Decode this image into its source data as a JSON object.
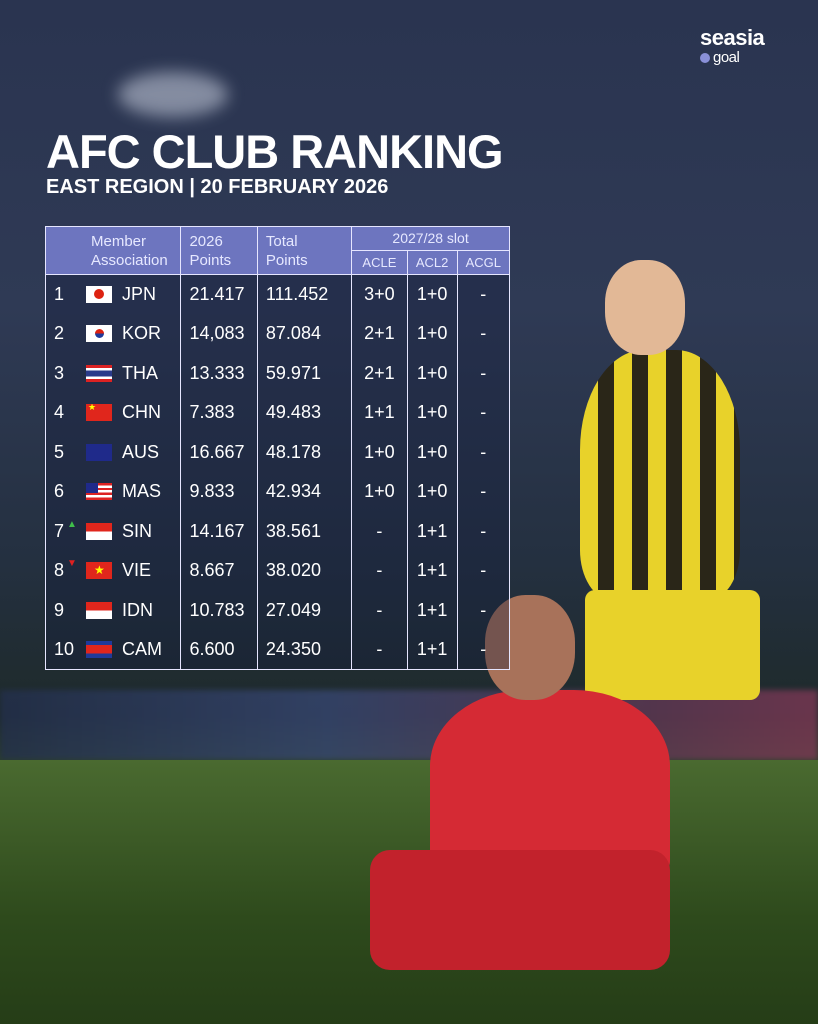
{
  "logo": {
    "brand": "seasia",
    "sub": "goal"
  },
  "title": "AFC CLUB RANKING",
  "subtitle": "EAST REGION | 20 FEBRUARY 2026",
  "table": {
    "headers": {
      "member": "Member Association",
      "points_2026": "2026 Points",
      "total": "Total Points",
      "slot": "2027/28 slot",
      "acle": "ACLE",
      "acl2": "ACL2",
      "acgl": "ACGL"
    },
    "rows": [
      {
        "rank": "1",
        "code": "JPN",
        "p2026": "21.417",
        "total": "111.452",
        "acle": "3+0",
        "acl2": "1+0",
        "acgl": "-",
        "move": ""
      },
      {
        "rank": "2",
        "code": "KOR",
        "p2026": "14,083",
        "total": "87.084",
        "acle": "2+1",
        "acl2": "1+0",
        "acgl": "-",
        "move": ""
      },
      {
        "rank": "3",
        "code": "THA",
        "p2026": "13.333",
        "total": "59.971",
        "acle": "2+1",
        "acl2": "1+0",
        "acgl": "-",
        "move": ""
      },
      {
        "rank": "4",
        "code": "CHN",
        "p2026": "7.383",
        "total": "49.483",
        "acle": "1+1",
        "acl2": "1+0",
        "acgl": "-",
        "move": ""
      },
      {
        "rank": "5",
        "code": "AUS",
        "p2026": "16.667",
        "total": "48.178",
        "acle": "1+0",
        "acl2": "1+0",
        "acgl": "-",
        "move": ""
      },
      {
        "rank": "6",
        "code": "MAS",
        "p2026": "9.833",
        "total": "42.934",
        "acle": "1+0",
        "acl2": "1+0",
        "acgl": "-",
        "move": ""
      },
      {
        "rank": "7",
        "code": "SIN",
        "p2026": "14.167",
        "total": "38.561",
        "acle": "-",
        "acl2": "1+1",
        "acgl": "-",
        "move": "up"
      },
      {
        "rank": "8",
        "code": "VIE",
        "p2026": "8.667",
        "total": "38.020",
        "acle": "-",
        "acl2": "1+1",
        "acgl": "-",
        "move": "down"
      },
      {
        "rank": "9",
        "code": "IDN",
        "p2026": "10.783",
        "total": "27.049",
        "acle": "-",
        "acl2": "1+1",
        "acgl": "-",
        "move": ""
      },
      {
        "rank": "10",
        "code": "CAM",
        "p2026": "6.600",
        "total": "24.350",
        "acle": "-",
        "acl2": "1+1",
        "acgl": "-",
        "move": ""
      }
    ]
  },
  "colors": {
    "header": "#7880d2",
    "up": "#3fbf4a",
    "down": "#e02020"
  }
}
